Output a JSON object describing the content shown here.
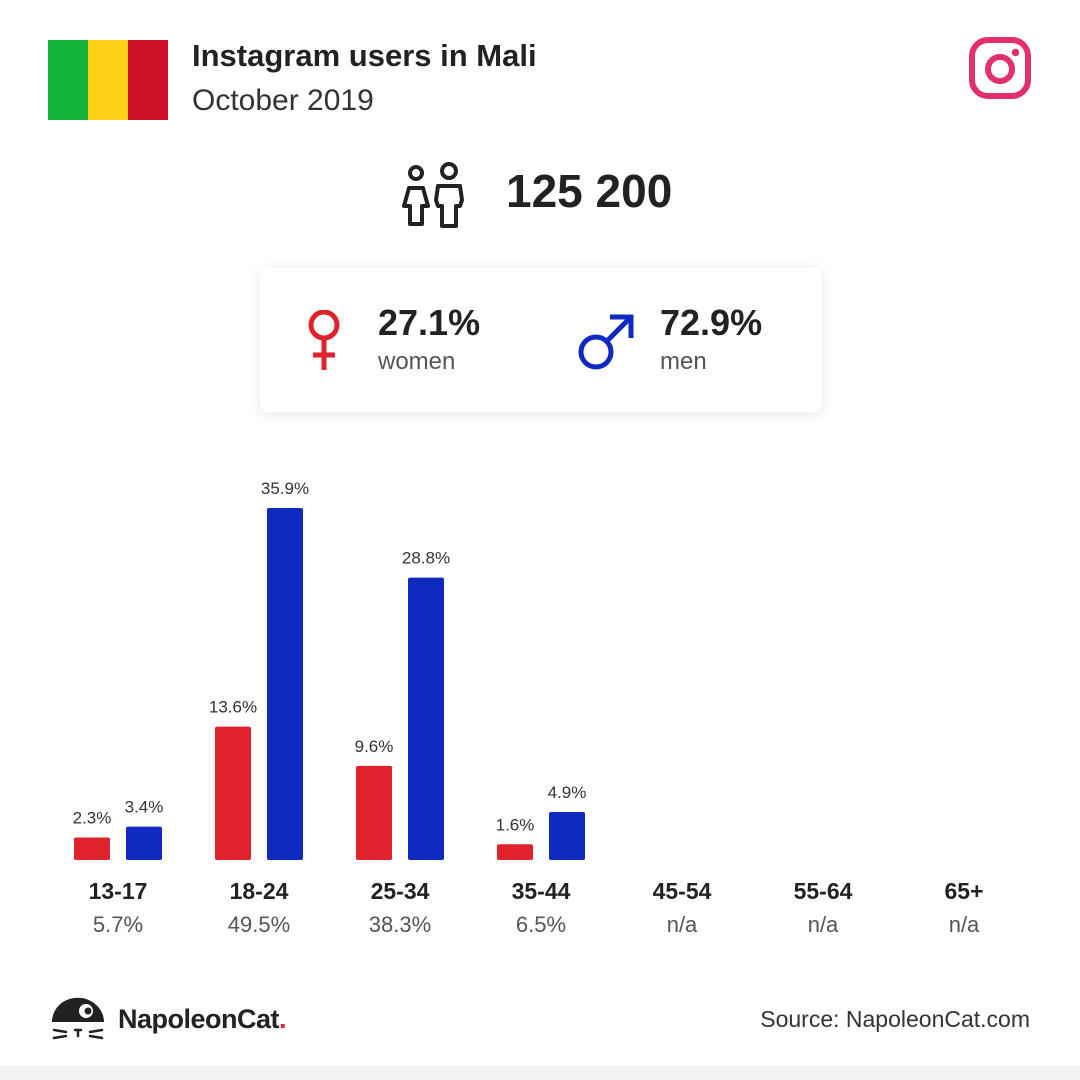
{
  "header": {
    "title": "Instagram users in Mali",
    "subtitle": "October 2019",
    "flag_colors": [
      "#14b53a",
      "#fcd116",
      "#ce1126"
    ],
    "platform_icon": "instagram-icon",
    "platform_color": "#e1306c"
  },
  "summary": {
    "total_users": "125 200",
    "users_icon": "users-icon",
    "women": {
      "percent": "27.1%",
      "label": "women",
      "icon": "female-icon",
      "color": "#e0222c"
    },
    "men": {
      "percent": "72.9%",
      "label": "men",
      "icon": "male-icon",
      "color": "#1029c0"
    }
  },
  "chart_data": {
    "type": "bar",
    "categories": [
      "13-17",
      "18-24",
      "25-34",
      "35-44",
      "45-54",
      "55-64",
      "65+"
    ],
    "category_totals": [
      "5.7%",
      "49.5%",
      "38.3%",
      "6.5%",
      "n/a",
      "n/a",
      "n/a"
    ],
    "series": [
      {
        "key": "women",
        "values": [
          2.3,
          13.6,
          9.6,
          1.6,
          null,
          null,
          null
        ],
        "labels": [
          "2.3%",
          "13.6%",
          "9.6%",
          "1.6%",
          "",
          "",
          ""
        ],
        "color": "#e0222c"
      },
      {
        "key": "men",
        "values": [
          3.4,
          35.9,
          28.8,
          4.9,
          null,
          null,
          null
        ],
        "labels": [
          "3.4%",
          "35.9%",
          "28.8%",
          "4.9%",
          "",
          "",
          ""
        ],
        "color": "#1029c0"
      }
    ],
    "ylim": [
      0,
      35.9
    ],
    "grid": false,
    "legend": "none"
  },
  "footer": {
    "brand": "NapoleonCat",
    "brand_dot": ".",
    "source": "Source: NapoleonCat.com",
    "brand_icon": "napoleoncat-logo-icon"
  }
}
